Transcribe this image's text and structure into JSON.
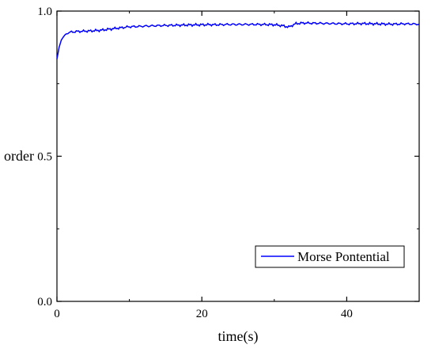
{
  "chart_data": {
    "type": "line",
    "title": "",
    "xlabel": "time(s)",
    "ylabel": "order",
    "xlim": [
      0,
      50
    ],
    "ylim": [
      0,
      1.0
    ],
    "xticks": [
      0,
      20,
      40
    ],
    "xtick_labels": [
      "0",
      "20",
      "40"
    ],
    "yticks": [
      0,
      0.5,
      1.0
    ],
    "ytick_labels": [
      "0.0",
      "0.5",
      "1.0"
    ],
    "grid": false,
    "legend": "bottom-right",
    "series": [
      {
        "name": "Morse Pontential",
        "color": "#0000ff",
        "x": [
          0,
          0.3,
          0.6,
          1,
          1.5,
          2,
          3,
          4,
          5,
          6,
          7,
          8,
          9,
          10,
          12,
          14,
          16,
          18,
          20,
          22,
          24,
          26,
          28,
          30,
          31,
          32,
          33,
          34,
          36,
          38,
          40,
          42,
          44,
          46,
          48,
          50
        ],
        "y": [
          0.835,
          0.875,
          0.9,
          0.915,
          0.925,
          0.928,
          0.93,
          0.931,
          0.932,
          0.934,
          0.937,
          0.94,
          0.943,
          0.946,
          0.948,
          0.95,
          0.951,
          0.952,
          0.953,
          0.953,
          0.954,
          0.954,
          0.954,
          0.953,
          0.95,
          0.945,
          0.957,
          0.959,
          0.958,
          0.957,
          0.956,
          0.957,
          0.956,
          0.955,
          0.956,
          0.955
        ]
      }
    ]
  }
}
